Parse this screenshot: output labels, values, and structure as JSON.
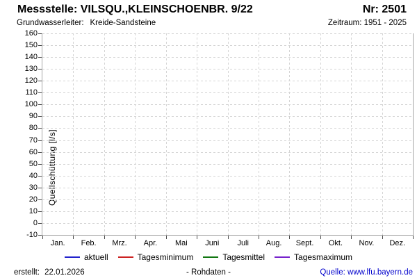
{
  "header": {
    "title": "Messstelle: VILSQU.,KLEINSCHOENBR. 9/22",
    "number_label": "Nr: 2501",
    "aquifer_label": "Grundwasserleiter:",
    "aquifer_value": "Kreide-Sandsteine",
    "period_label": "Zeitraum: 1951 - 2025"
  },
  "chart_data": {
    "type": "line",
    "title": "",
    "xlabel": "",
    "ylabel": "Quellschüttung [l/s]",
    "ylim": [
      -10,
      160
    ],
    "ytick_step": 10,
    "yticks": [
      160,
      150,
      140,
      130,
      120,
      110,
      100,
      90,
      80,
      70,
      60,
      50,
      40,
      30,
      20,
      10,
      0,
      -10
    ],
    "categories": [
      "Jan.",
      "Feb.",
      "Mrz.",
      "Apr.",
      "Mai",
      "Juni",
      "Juli",
      "Aug.",
      "Sept.",
      "Okt.",
      "Nov.",
      "Dez."
    ],
    "series": [
      {
        "name": "aktuell",
        "color": "#2222cc",
        "values": []
      },
      {
        "name": "Tagesminimum",
        "color": "#cc2222",
        "values": []
      },
      {
        "name": "Tagesmittel",
        "color": "#117711",
        "values": []
      },
      {
        "name": "Tagesmaximum",
        "color": "#7722cc",
        "values": []
      }
    ],
    "grid": true,
    "grid_style": "dashed",
    "legend_position": "bottom",
    "note": "Empty plot area — no data lines are drawn for the shown period"
  },
  "footer": {
    "created_label": "erstellt:",
    "created_date": "22.01.2026",
    "center_label": "- Rohdaten -",
    "source_text": "Quelle: www.lfu.bayern.de",
    "link_color": "#0000cc"
  }
}
